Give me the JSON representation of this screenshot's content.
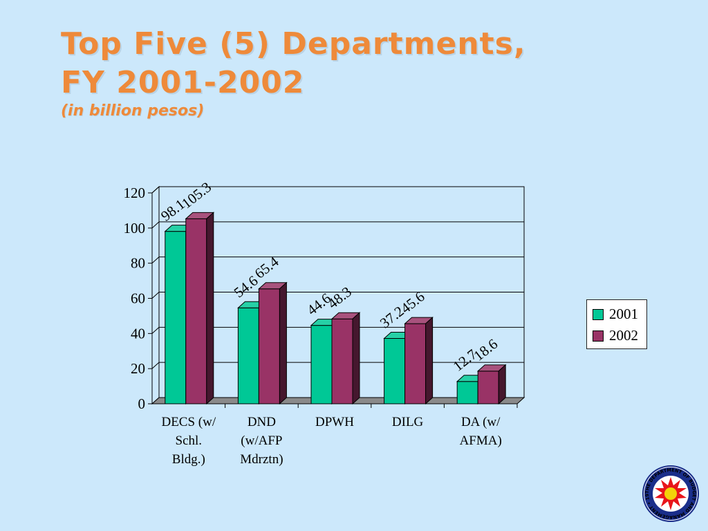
{
  "title": {
    "line1": "Top Five (5) Departments,",
    "line2": "FY 2001-2002",
    "subtitle": "(in billion pesos)"
  },
  "chart_data": {
    "type": "bar",
    "categories": [
      [
        "DECS (w/",
        "Schl.",
        "Bldg.)"
      ],
      [
        "DND",
        "(w/AFP",
        "Mdrztn)"
      ],
      [
        "DPWH"
      ],
      [
        "DILG"
      ],
      [
        "DA (w/",
        "AFMA)"
      ]
    ],
    "series": [
      {
        "name": "2001",
        "values": [
          98.1,
          54.6,
          44.6,
          37.2,
          12.7
        ],
        "labels": [
          "98.1",
          "54.6",
          "44.6",
          "37.2",
          "12.7"
        ],
        "color": "#00c896"
      },
      {
        "name": "2002",
        "values": [
          105.3,
          65.4,
          48.3,
          45.6,
          18.6
        ],
        "labels": [
          "105.3",
          "65.4",
          "48.3",
          "45.6",
          "18.6"
        ],
        "color": "#993366"
      }
    ],
    "y_ticks": [
      "0",
      "20",
      "40",
      "60",
      "80",
      "100",
      "120"
    ],
    "ylim": [
      0,
      120
    ],
    "grid": true,
    "legend_position": "right",
    "three_d": true
  },
  "logo": {
    "text": "THE DEPARTMENT OF BUDGET AND MANAGEMENT • 1936 •",
    "colors": {
      "ring": "#1a2e8a",
      "star": "#e8151b",
      "center": "#f2d20a"
    }
  }
}
